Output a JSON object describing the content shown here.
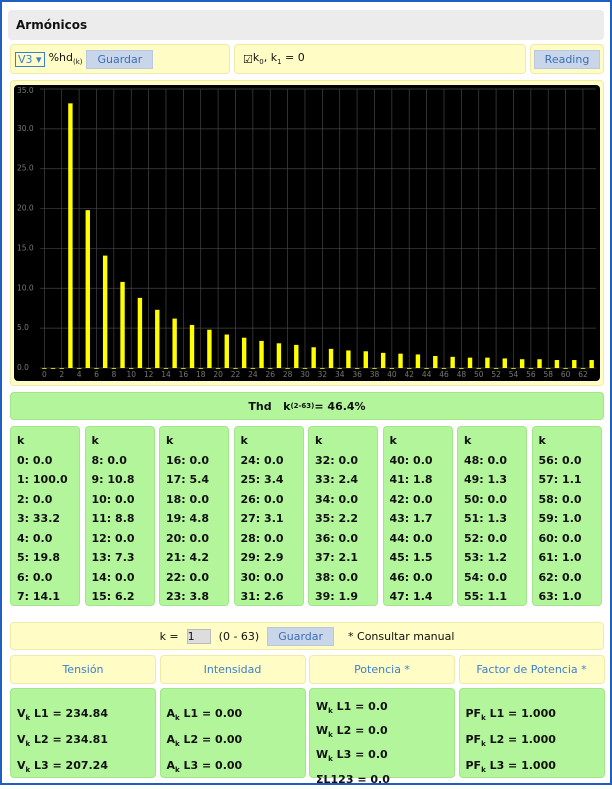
{
  "header": {
    "title": "Armónicos"
  },
  "toolbar": {
    "select": "V3",
    "measure": "%hd",
    "measure_sub": "(k)",
    "save": "Guardar",
    "check_parts": [
      "k",
      "0",
      ", k",
      "1",
      " = 0"
    ],
    "reading": "Reading"
  },
  "chart_data": {
    "type": "bar",
    "color": "#ffff00",
    "categories": [
      "0",
      null,
      "2",
      null,
      "4",
      null,
      "6",
      null,
      "8",
      null,
      "10",
      null,
      "12",
      null,
      "14",
      null,
      "16",
      null,
      "18",
      null,
      "20",
      null,
      "22",
      null,
      "24",
      null,
      "26",
      null,
      "28",
      null,
      "30",
      null,
      "32",
      null,
      "34",
      null,
      "36",
      null,
      "38",
      null,
      "40",
      null,
      "42",
      null,
      "44",
      null,
      "46",
      null,
      "48",
      null,
      "50",
      null,
      "52",
      null,
      "54",
      null,
      "56",
      null,
      "58",
      null,
      "60",
      null,
      "62",
      null
    ],
    "values": [
      0,
      0,
      0,
      33.2,
      0,
      19.8,
      0,
      14.1,
      0,
      10.8,
      0,
      8.8,
      0,
      7.3,
      0,
      6.2,
      0,
      5.4,
      0,
      4.8,
      0,
      4.2,
      0,
      3.8,
      0,
      3.4,
      0,
      3.1,
      0,
      2.9,
      0,
      2.6,
      0,
      2.4,
      0,
      2.2,
      0,
      2.1,
      0,
      1.9,
      0,
      1.8,
      0,
      1.7,
      0,
      1.5,
      0,
      1.4,
      0,
      1.3,
      0,
      1.3,
      0,
      1.2,
      0,
      1.1,
      0,
      1.1,
      0,
      1.0,
      0,
      1.0,
      0,
      1.0
    ],
    "ylim": [
      0,
      35
    ],
    "yticks": [
      {
        "value": 0,
        "label": "0.0"
      },
      {
        "value": 5,
        "label": "5.0"
      },
      {
        "value": 10,
        "label": "10.0"
      },
      {
        "value": 15,
        "label": "15.0"
      },
      {
        "value": 20,
        "label": "20.0"
      },
      {
        "value": 25,
        "label": "25.0"
      },
      {
        "value": 30,
        "label": "30.0"
      },
      {
        "value": 35,
        "label": "35.0"
      }
    ],
    "grid": true
  },
  "thd": {
    "label": "Thd",
    "k": "k",
    "sub": "(2-63)",
    "value": " = 46.4%"
  },
  "table": {
    "columns": [
      {
        "header": "k",
        "rows": [
          "0: 0.0",
          "1: 100.0",
          "2: 0.0",
          "3: 33.2",
          "4: 0.0",
          "5: 19.8",
          "6: 0.0",
          "7: 14.1"
        ]
      },
      {
        "header": "k",
        "rows": [
          "8: 0.0",
          "9: 10.8",
          "10: 0.0",
          "11: 8.8",
          "12: 0.0",
          "13: 7.3",
          "14: 0.0",
          "15: 6.2"
        ]
      },
      {
        "header": "k",
        "rows": [
          "16: 0.0",
          "17: 5.4",
          "18: 0.0",
          "19: 4.8",
          "20: 0.0",
          "21: 4.2",
          "22: 0.0",
          "23: 3.8"
        ]
      },
      {
        "header": "k",
        "rows": [
          "24: 0.0",
          "25: 3.4",
          "26: 0.0",
          "27: 3.1",
          "28: 0.0",
          "29: 2.9",
          "30: 0.0",
          "31: 2.6"
        ]
      },
      {
        "header": "k",
        "rows": [
          "32: 0.0",
          "33: 2.4",
          "34: 0.0",
          "35: 2.2",
          "36: 0.0",
          "37: 2.1",
          "38: 0.0",
          "39: 1.9"
        ]
      },
      {
        "header": "k",
        "rows": [
          "40: 0.0",
          "41: 1.8",
          "42: 0.0",
          "43: 1.7",
          "44: 0.0",
          "45: 1.5",
          "46: 0.0",
          "47: 1.4"
        ]
      },
      {
        "header": "k",
        "rows": [
          "48: 0.0",
          "49: 1.3",
          "50: 0.0",
          "51: 1.3",
          "52: 0.0",
          "53: 1.2",
          "54: 0.0",
          "55: 1.1"
        ]
      },
      {
        "header": "k",
        "rows": [
          "56: 0.0",
          "57: 1.1",
          "58: 0.0",
          "59: 1.0",
          "60: 0.0",
          "61: 1.0",
          "62: 0.0",
          "63: 1.0"
        ]
      }
    ]
  },
  "krow": {
    "label": "k =",
    "input": "1",
    "range": "(0 - 63)",
    "save": "Guardar",
    "note": "* Consultar manual"
  },
  "panels": [
    {
      "header": "Tensión",
      "lines": [
        {
          "main": "V",
          "sub": "k",
          "rest": " L1 = 234.84"
        },
        {
          "main": "V",
          "sub": "k",
          "rest": " L2 = 234.81"
        },
        {
          "main": "V",
          "sub": "k",
          "rest": " L3 = 207.24"
        }
      ]
    },
    {
      "header": "Intensidad",
      "lines": [
        {
          "main": "A",
          "sub": "k",
          "rest": " L1 = 0.00"
        },
        {
          "main": "A",
          "sub": "k",
          "rest": " L2 = 0.00"
        },
        {
          "main": "A",
          "sub": "k",
          "rest": " L3 = 0.00"
        }
      ]
    },
    {
      "header": "Potencia *",
      "lines": [
        {
          "main": "W",
          "sub": "k",
          "rest": " L1 = 0.0"
        },
        {
          "main": "W",
          "sub": "k",
          "rest": " L2 = 0.0"
        },
        {
          "main": "W",
          "sub": "k",
          "rest": " L3 = 0.0"
        },
        {
          "main": "ΣL123 = 0.0"
        }
      ]
    },
    {
      "header": "Factor de Potencia *",
      "lines": [
        {
          "main": "PF",
          "sub": "k",
          "rest": " L1 = 1.000"
        },
        {
          "main": "PF",
          "sub": "k",
          "rest": " L2 = 1.000"
        },
        {
          "main": "PF",
          "sub": "k",
          "rest": " L3 = 1.000"
        }
      ]
    }
  ]
}
